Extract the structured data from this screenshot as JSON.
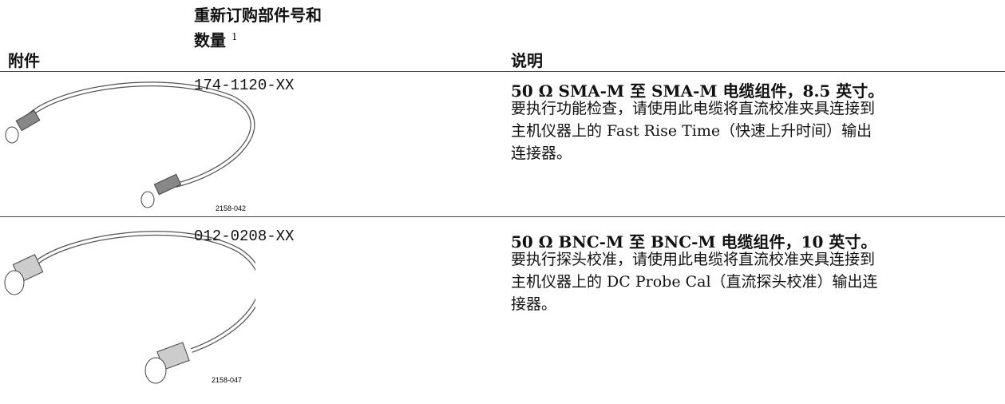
{
  "header": {
    "accessory": "附件",
    "part_number": "重新订购部件号和数量",
    "part_number_footnote": "1",
    "description": "说明"
  },
  "rows": [
    {
      "image_label": "2158-042",
      "part_number": "174-1120-XX",
      "title": "50 Ω SMA-M 至 SMA-M 电缆组件，8.5 英寸。",
      "body": "要执行功能检查，请使用此电缆将直流校准夹具连接到主机仪器上的 Fast Rise Time（快速上升时间）输出连接器。"
    },
    {
      "image_label": "2158-047",
      "part_number": "012-0208-XX",
      "title": "50 Ω BNC-M 至 BNC-M 电缆组件，10 英寸。",
      "body": "要执行探头校准，请使用此电缆将直流校准夹具连接到主机仪器上的 DC Probe Cal（直流探头校准）输出连接器。"
    }
  ]
}
